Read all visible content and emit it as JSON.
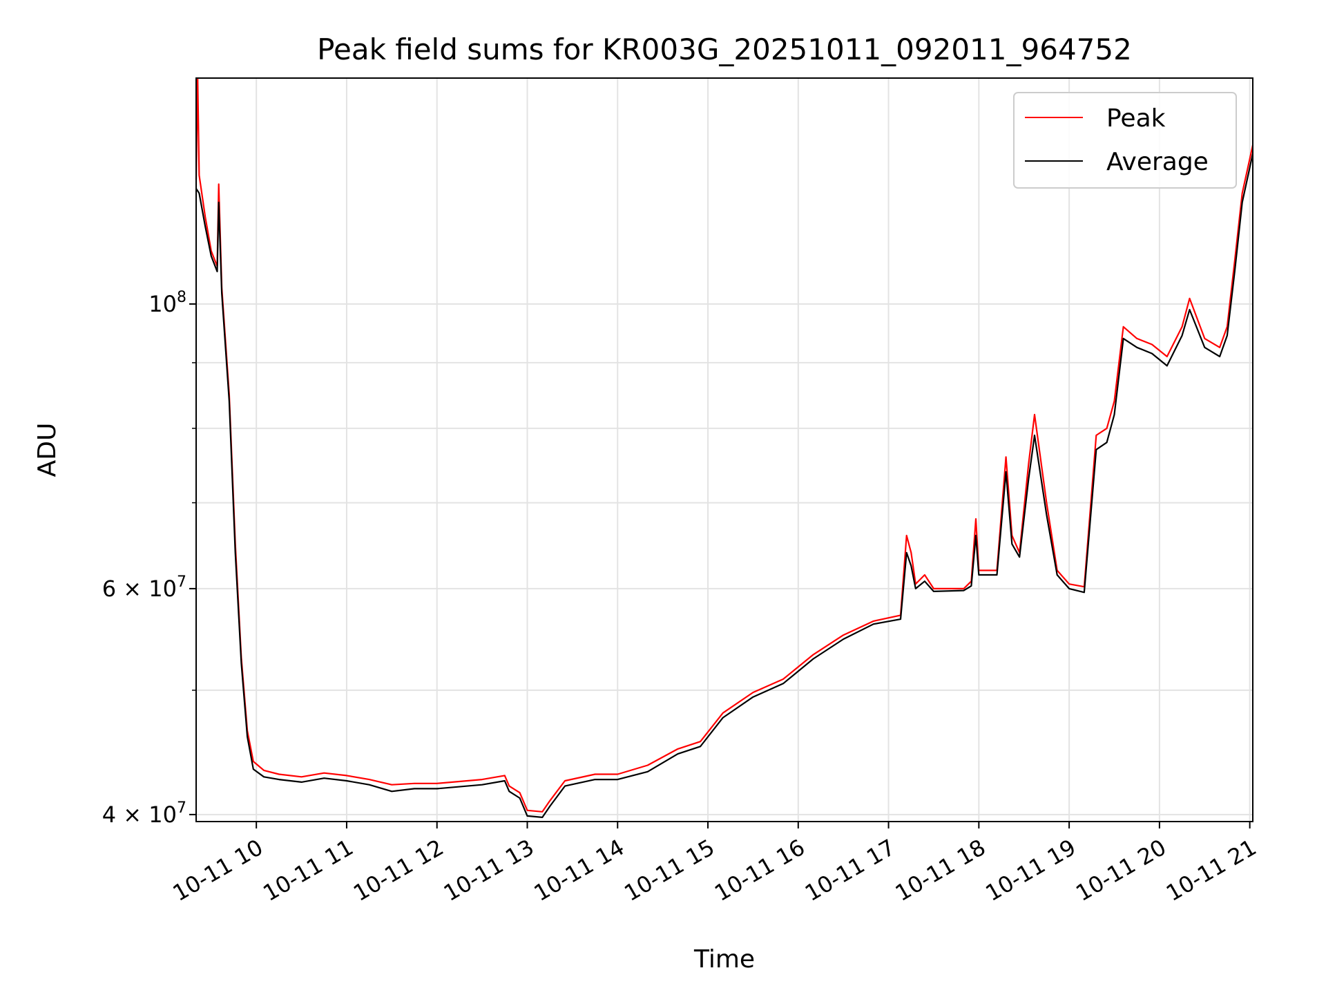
{
  "chart_data": {
    "type": "line",
    "title": "Peak field sums for KR003G_20251011_092011_964752",
    "xlabel": "Time",
    "ylabel": "ADU",
    "xscale": "time",
    "yscale": "log",
    "xlim": [
      "2025-10-11 09:20",
      "2025-10-11 21:02"
    ],
    "ylim": [
      39500000,
      150000000
    ],
    "grid": true,
    "legend": "top-right",
    "x_ticks": [
      {
        "value": "2025-10-11 10:00",
        "label": "10-11 10"
      },
      {
        "value": "2025-10-11 11:00",
        "label": "10-11 11"
      },
      {
        "value": "2025-10-11 12:00",
        "label": "10-11 12"
      },
      {
        "value": "2025-10-11 13:00",
        "label": "10-11 13"
      },
      {
        "value": "2025-10-11 14:00",
        "label": "10-11 14"
      },
      {
        "value": "2025-10-11 15:00",
        "label": "10-11 15"
      },
      {
        "value": "2025-10-11 16:00",
        "label": "10-11 16"
      },
      {
        "value": "2025-10-11 17:00",
        "label": "10-11 17"
      },
      {
        "value": "2025-10-11 18:00",
        "label": "10-11 18"
      },
      {
        "value": "2025-10-11 19:00",
        "label": "10-11 19"
      },
      {
        "value": "2025-10-11 20:00",
        "label": "10-11 20"
      },
      {
        "value": "2025-10-11 21:00",
        "label": "10-11 21"
      }
    ],
    "y_major_ticks": [
      {
        "value": 40000000,
        "base": "4 × 10",
        "exp": "7"
      },
      {
        "value": 60000000,
        "base": "6 × 10",
        "exp": "7"
      },
      {
        "value": 100000000,
        "base": "10",
        "exp": "8"
      }
    ],
    "y_minor_ticks": [
      50000000,
      70000000,
      80000000,
      90000000
    ],
    "series": [
      {
        "name": "Peak",
        "color": "#ff0000",
        "points": [
          [
            "2025-10-11 09:20",
            125000000
          ],
          [
            "2025-10-11 09:21",
            150000000
          ],
          [
            "2025-10-11 09:22",
            126000000
          ],
          [
            "2025-10-11 09:26",
            117000000
          ],
          [
            "2025-10-11 09:30",
            110000000
          ],
          [
            "2025-10-11 09:34",
            107000000
          ],
          [
            "2025-10-11 09:35",
            124000000
          ],
          [
            "2025-10-11 09:37",
            103000000
          ],
          [
            "2025-10-11 09:42",
            85000000
          ],
          [
            "2025-10-11 09:46",
            65000000
          ],
          [
            "2025-10-11 09:50",
            53000000
          ],
          [
            "2025-10-11 09:54",
            46500000
          ],
          [
            "2025-10-11 09:58",
            44000000
          ],
          [
            "2025-10-11 10:05",
            43300000
          ],
          [
            "2025-10-11 10:15",
            43000000
          ],
          [
            "2025-10-11 10:30",
            42800000
          ],
          [
            "2025-10-11 10:45",
            43100000
          ],
          [
            "2025-10-11 11:00",
            42900000
          ],
          [
            "2025-10-11 11:15",
            42600000
          ],
          [
            "2025-10-11 11:30",
            42200000
          ],
          [
            "2025-10-11 11:45",
            42300000
          ],
          [
            "2025-10-11 12:00",
            42300000
          ],
          [
            "2025-10-11 12:30",
            42600000
          ],
          [
            "2025-10-11 12:45",
            42900000
          ],
          [
            "2025-10-11 12:48",
            42100000
          ],
          [
            "2025-10-11 12:55",
            41600000
          ],
          [
            "2025-10-11 13:00",
            40300000
          ],
          [
            "2025-10-11 13:10",
            40200000
          ],
          [
            "2025-10-11 13:15",
            41000000
          ],
          [
            "2025-10-11 13:25",
            42500000
          ],
          [
            "2025-10-11 13:45",
            43000000
          ],
          [
            "2025-10-11 14:00",
            43000000
          ],
          [
            "2025-10-11 14:20",
            43700000
          ],
          [
            "2025-10-11 14:40",
            45000000
          ],
          [
            "2025-10-11 14:55",
            45600000
          ],
          [
            "2025-10-11 15:10",
            48000000
          ],
          [
            "2025-10-11 15:30",
            49800000
          ],
          [
            "2025-10-11 15:50",
            51000000
          ],
          [
            "2025-10-11 16:10",
            53300000
          ],
          [
            "2025-10-11 16:30",
            55200000
          ],
          [
            "2025-10-11 16:50",
            56600000
          ],
          [
            "2025-10-11 17:08",
            57200000
          ],
          [
            "2025-10-11 17:12",
            66000000
          ],
          [
            "2025-10-11 17:15",
            64000000
          ],
          [
            "2025-10-11 17:18",
            60500000
          ],
          [
            "2025-10-11 17:24",
            61500000
          ],
          [
            "2025-10-11 17:30",
            60000000
          ],
          [
            "2025-10-11 17:50",
            60000000
          ],
          [
            "2025-10-11 17:55",
            60800000
          ],
          [
            "2025-10-11 17:58",
            68000000
          ],
          [
            "2025-10-11 18:00",
            62000000
          ],
          [
            "2025-10-11 18:12",
            62000000
          ],
          [
            "2025-10-11 18:18",
            76000000
          ],
          [
            "2025-10-11 18:22",
            66000000
          ],
          [
            "2025-10-11 18:27",
            64000000
          ],
          [
            "2025-10-11 18:33",
            75000000
          ],
          [
            "2025-10-11 18:37",
            82000000
          ],
          [
            "2025-10-11 18:45",
            70000000
          ],
          [
            "2025-10-11 18:52",
            62000000
          ],
          [
            "2025-10-11 19:00",
            60500000
          ],
          [
            "2025-10-11 19:10",
            60200000
          ],
          [
            "2025-10-11 19:18",
            79000000
          ],
          [
            "2025-10-11 19:25",
            80000000
          ],
          [
            "2025-10-11 19:30",
            84000000
          ],
          [
            "2025-10-11 19:36",
            96000000
          ],
          [
            "2025-10-11 19:45",
            94000000
          ],
          [
            "2025-10-11 19:55",
            93000000
          ],
          [
            "2025-10-11 20:05",
            91000000
          ],
          [
            "2025-10-11 20:15",
            96000000
          ],
          [
            "2025-10-11 20:20",
            101000000
          ],
          [
            "2025-10-11 20:30",
            94000000
          ],
          [
            "2025-10-11 20:40",
            92500000
          ],
          [
            "2025-10-11 20:45",
            96000000
          ],
          [
            "2025-10-11 20:50",
            108000000
          ],
          [
            "2025-10-11 20:55",
            122000000
          ],
          [
            "2025-10-11 21:02",
            133000000
          ]
        ]
      },
      {
        "name": "Average",
        "color": "#000000",
        "points": [
          [
            "2025-10-11 09:20",
            123000000
          ],
          [
            "2025-10-11 09:22",
            122000000
          ],
          [
            "2025-10-11 09:26",
            115000000
          ],
          [
            "2025-10-11 09:30",
            109000000
          ],
          [
            "2025-10-11 09:34",
            106000000
          ],
          [
            "2025-10-11 09:35",
            120000000
          ],
          [
            "2025-10-11 09:37",
            102000000
          ],
          [
            "2025-10-11 09:42",
            84000000
          ],
          [
            "2025-10-11 09:46",
            64000000
          ],
          [
            "2025-10-11 09:50",
            52500000
          ],
          [
            "2025-10-11 09:54",
            46000000
          ],
          [
            "2025-10-11 09:58",
            43400000
          ],
          [
            "2025-10-11 10:05",
            42800000
          ],
          [
            "2025-10-11 10:15",
            42600000
          ],
          [
            "2025-10-11 10:30",
            42400000
          ],
          [
            "2025-10-11 10:45",
            42700000
          ],
          [
            "2025-10-11 11:00",
            42500000
          ],
          [
            "2025-10-11 11:15",
            42200000
          ],
          [
            "2025-10-11 11:30",
            41700000
          ],
          [
            "2025-10-11 11:45",
            41900000
          ],
          [
            "2025-10-11 12:00",
            41900000
          ],
          [
            "2025-10-11 12:30",
            42200000
          ],
          [
            "2025-10-11 12:45",
            42500000
          ],
          [
            "2025-10-11 12:48",
            41700000
          ],
          [
            "2025-10-11 12:55",
            41200000
          ],
          [
            "2025-10-11 13:00",
            39900000
          ],
          [
            "2025-10-11 13:10",
            39800000
          ],
          [
            "2025-10-11 13:15",
            40600000
          ],
          [
            "2025-10-11 13:25",
            42100000
          ],
          [
            "2025-10-11 13:45",
            42600000
          ],
          [
            "2025-10-11 14:00",
            42600000
          ],
          [
            "2025-10-11 14:20",
            43200000
          ],
          [
            "2025-10-11 14:40",
            44600000
          ],
          [
            "2025-10-11 14:55",
            45200000
          ],
          [
            "2025-10-11 15:10",
            47600000
          ],
          [
            "2025-10-11 15:30",
            49400000
          ],
          [
            "2025-10-11 15:50",
            50600000
          ],
          [
            "2025-10-11 16:10",
            52900000
          ],
          [
            "2025-10-11 16:30",
            54800000
          ],
          [
            "2025-10-11 16:50",
            56300000
          ],
          [
            "2025-10-11 17:08",
            56800000
          ],
          [
            "2025-10-11 17:12",
            64000000
          ],
          [
            "2025-10-11 17:15",
            62500000
          ],
          [
            "2025-10-11 17:18",
            60000000
          ],
          [
            "2025-10-11 17:24",
            60800000
          ],
          [
            "2025-10-11 17:30",
            59700000
          ],
          [
            "2025-10-11 17:50",
            59800000
          ],
          [
            "2025-10-11 17:55",
            60300000
          ],
          [
            "2025-10-11 17:58",
            66000000
          ],
          [
            "2025-10-11 18:00",
            61500000
          ],
          [
            "2025-10-11 18:12",
            61500000
          ],
          [
            "2025-10-11 18:18",
            74000000
          ],
          [
            "2025-10-11 18:22",
            65000000
          ],
          [
            "2025-10-11 18:27",
            63500000
          ],
          [
            "2025-10-11 18:33",
            73000000
          ],
          [
            "2025-10-11 18:37",
            79000000
          ],
          [
            "2025-10-11 18:45",
            68500000
          ],
          [
            "2025-10-11 18:52",
            61500000
          ],
          [
            "2025-10-11 19:00",
            60000000
          ],
          [
            "2025-10-11 19:10",
            59600000
          ],
          [
            "2025-10-11 19:18",
            77000000
          ],
          [
            "2025-10-11 19:25",
            78000000
          ],
          [
            "2025-10-11 19:30",
            82000000
          ],
          [
            "2025-10-11 19:36",
            94000000
          ],
          [
            "2025-10-11 19:45",
            92500000
          ],
          [
            "2025-10-11 19:55",
            91500000
          ],
          [
            "2025-10-11 20:05",
            89500000
          ],
          [
            "2025-10-11 20:15",
            94500000
          ],
          [
            "2025-10-11 20:20",
            99000000
          ],
          [
            "2025-10-11 20:30",
            92500000
          ],
          [
            "2025-10-11 20:40",
            91000000
          ],
          [
            "2025-10-11 20:45",
            94500000
          ],
          [
            "2025-10-11 20:50",
            106000000
          ],
          [
            "2025-10-11 20:55",
            120000000
          ],
          [
            "2025-10-11 21:02",
            131000000
          ]
        ]
      }
    ]
  }
}
